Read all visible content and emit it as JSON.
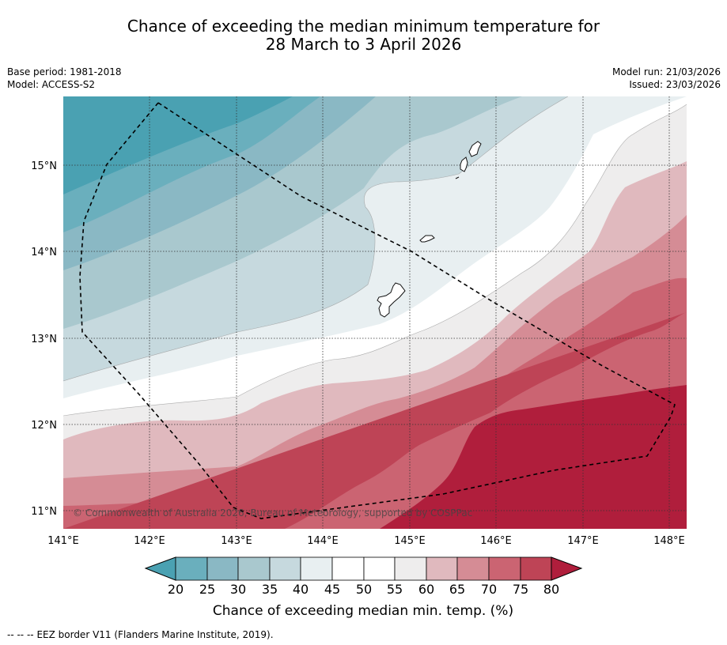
{
  "title": {
    "line1": "Chance of exceeding the median minimum temperature for",
    "line2": "28 March to 3 April 2026"
  },
  "meta": {
    "base_period": "Base period: 1981-2018",
    "model": "Model: ACCESS-S2",
    "model_run": "Model run: 21/03/2026",
    "issued": "Issued: 23/03/2026"
  },
  "map": {
    "lon_range": [
      141.0,
      148.2
    ],
    "lat_range": [
      10.8,
      15.8
    ],
    "lat_labels": [
      {
        "value": 15,
        "text": "15°N"
      },
      {
        "value": 14,
        "text": "14°N"
      },
      {
        "value": 13,
        "text": "13°N"
      },
      {
        "value": 12,
        "text": "12°N"
      },
      {
        "value": 11,
        "text": "11°N"
      }
    ],
    "lon_labels": [
      {
        "value": 141,
        "text": "141°E"
      },
      {
        "value": 142,
        "text": "142°E"
      },
      {
        "value": 143,
        "text": "143°E"
      },
      {
        "value": 144,
        "text": "144°E"
      },
      {
        "value": 145,
        "text": "145°E"
      },
      {
        "value": 146,
        "text": "146°E"
      },
      {
        "value": 147,
        "text": "147°E"
      },
      {
        "value": 148,
        "text": "148°E"
      }
    ],
    "copyright": "© Commonwealth of Australia 2026, Bureau of Meteorology, supported by COSPPac"
  },
  "colorbar": {
    "ticks": [
      "20",
      "25",
      "30",
      "35",
      "40",
      "45",
      "50",
      "55",
      "60",
      "65",
      "70",
      "75",
      "80"
    ],
    "colors": {
      "below_20": "#4aa1b2",
      "20_25": "#6aafbd",
      "25_30": "#8ab8c4",
      "30_35": "#a9c8ce",
      "35_40": "#c6d9de",
      "40_45": "#e8eff1",
      "45_50": "#ffffff",
      "50_55": "#ffffff",
      "55_60": "#eeeded",
      "60_65": "#e0b9be",
      "65_70": "#d58c95",
      "70_75": "#cb6472",
      "75_80": "#be4456",
      "above_80": "#b01e3c"
    },
    "label": "Chance of exceeding median min. temp. (%)"
  },
  "footer": {
    "line_symbol": "-- -- --",
    "text": "EEZ border V11 (Flanders Marine Institute, 2019)."
  }
}
